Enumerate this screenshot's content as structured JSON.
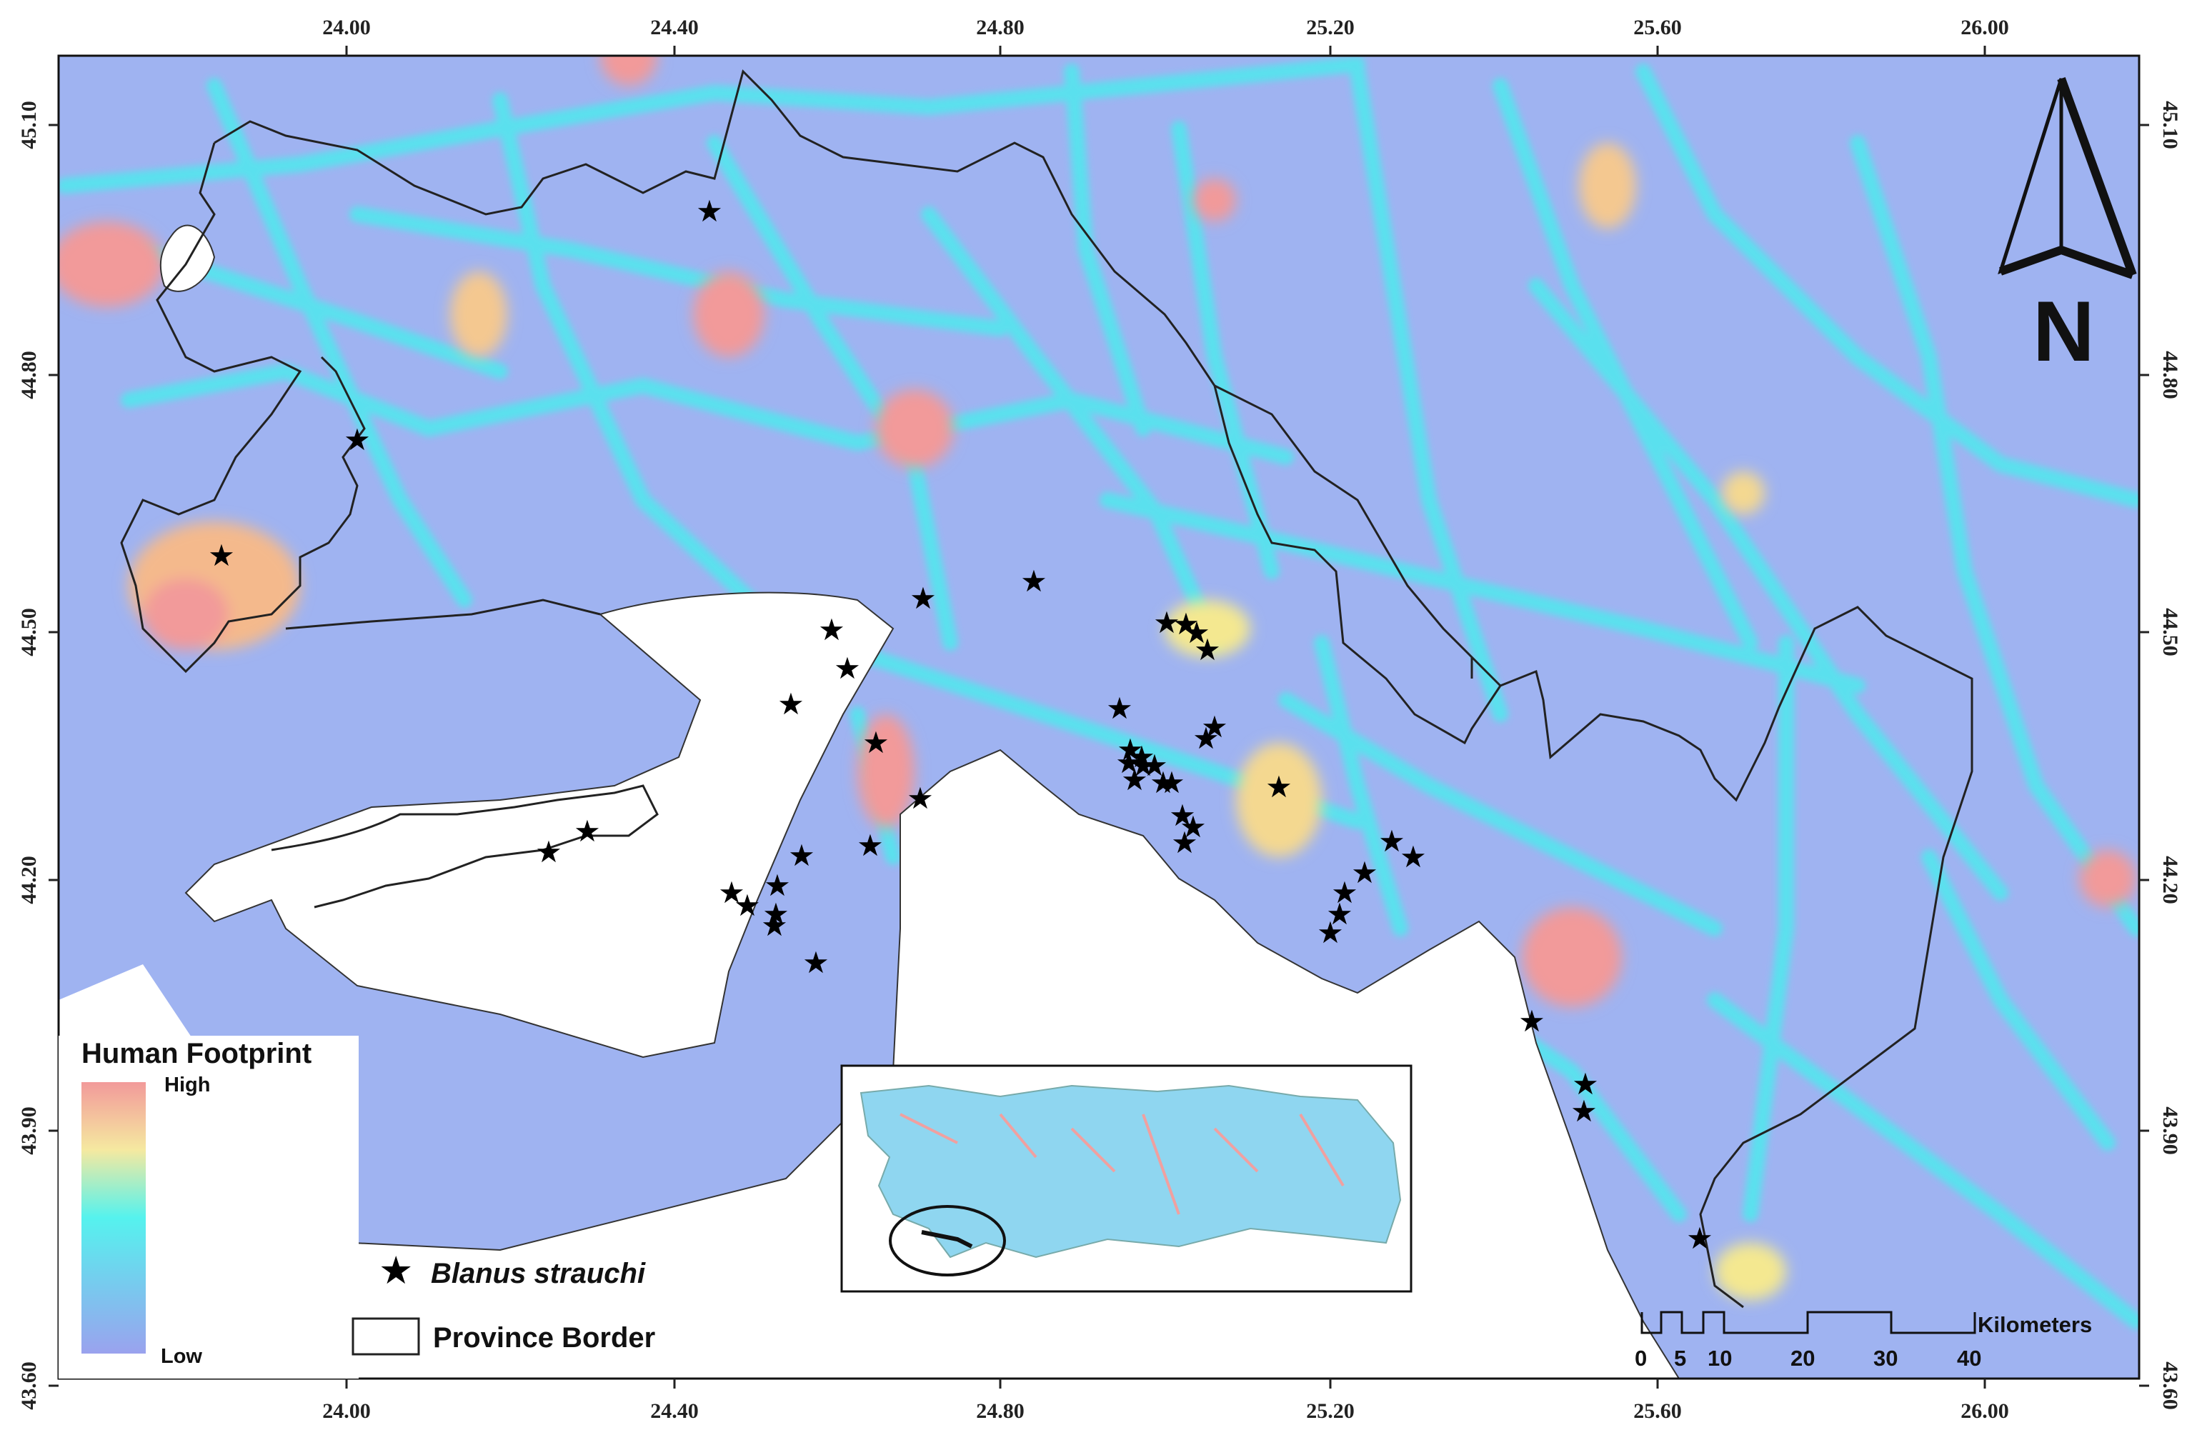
{
  "map": {
    "x_ticks": [
      "24.00",
      "24.40",
      "24.80",
      "25.20",
      "25.60",
      "26.00"
    ],
    "y_ticks": [
      "45.10",
      "44.80",
      "44.50",
      "44.20",
      "43.90",
      "43.60"
    ]
  },
  "legend": {
    "title": "Human Footprint",
    "high_label": "High",
    "low_label": "Low",
    "species_label": "Blanus strauchi",
    "border_label": "Province Border"
  },
  "scale_bar": {
    "unit": "Kilometers",
    "ticks": [
      "0",
      "5",
      "10",
      "20",
      "30",
      "40"
    ]
  },
  "north_arrow": {
    "label": "N"
  },
  "colors": {
    "low": "#8fa3f0",
    "mid_low": "#40f0f0",
    "mid": "#f0f080",
    "high": "#f08080",
    "background_field": "#9cb4f2",
    "border": "#222222",
    "star": "#000000"
  }
}
